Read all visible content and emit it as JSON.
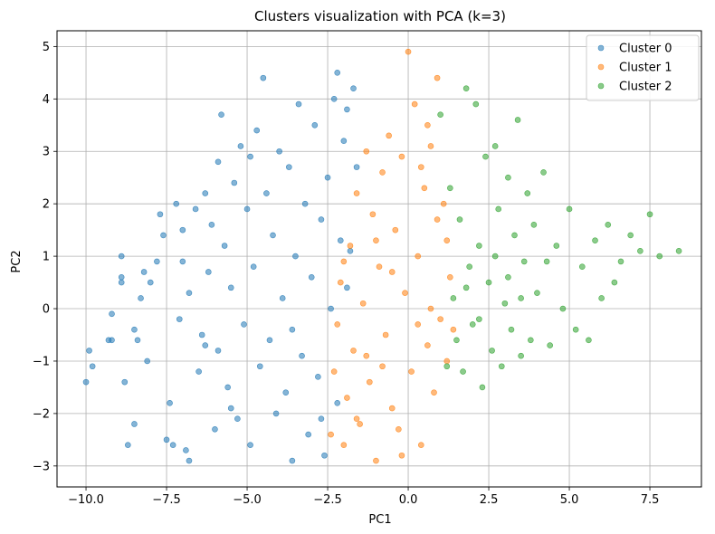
{
  "chart_data": {
    "type": "scatter",
    "title": "Clusters visualization with PCA (k=3)",
    "xlabel": "PC1",
    "ylabel": "PC2",
    "xlim": [
      -10.9,
      9.1
    ],
    "ylim": [
      -3.4,
      5.3
    ],
    "xticks": [
      -10.0,
      -7.5,
      -5.0,
      -2.5,
      0.0,
      2.5,
      5.0,
      7.5
    ],
    "xtick_labels": [
      "−10.0",
      "−7.5",
      "−5.0",
      "−2.5",
      "0.0",
      "2.5",
      "5.0",
      "7.5"
    ],
    "yticks": [
      -3,
      -2,
      -1,
      0,
      1,
      2,
      3,
      4,
      5
    ],
    "ytick_labels": [
      "−3",
      "−2",
      "−1",
      "0",
      "1",
      "2",
      "3",
      "4",
      "5"
    ],
    "grid": true,
    "legend_position": "top-right",
    "marker_alpha": 0.55,
    "series": [
      {
        "name": "Cluster 0",
        "color": "#1f77b4",
        "points": [
          [
            -10.0,
            -1.4
          ],
          [
            -9.8,
            -1.1
          ],
          [
            -9.9,
            -0.8
          ],
          [
            -9.2,
            -0.6
          ],
          [
            -9.3,
            -0.6
          ],
          [
            -9.2,
            -0.1
          ],
          [
            -8.9,
            1.0
          ],
          [
            -8.9,
            0.6
          ],
          [
            -8.9,
            0.5
          ],
          [
            -8.8,
            -1.4
          ],
          [
            -8.7,
            -2.6
          ],
          [
            -8.5,
            -2.2
          ],
          [
            -8.5,
            -0.4
          ],
          [
            -8.4,
            -0.6
          ],
          [
            -8.3,
            0.2
          ],
          [
            -8.2,
            0.7
          ],
          [
            -8.1,
            -1.0
          ],
          [
            -8.0,
            0.5
          ],
          [
            -7.8,
            0.9
          ],
          [
            -7.7,
            1.8
          ],
          [
            -7.6,
            1.4
          ],
          [
            -7.5,
            -2.5
          ],
          [
            -7.4,
            -1.8
          ],
          [
            -7.3,
            -2.6
          ],
          [
            -7.2,
            2.0
          ],
          [
            -7.1,
            -0.2
          ],
          [
            -7.0,
            1.5
          ],
          [
            -6.9,
            -2.7
          ],
          [
            -6.8,
            -2.9
          ],
          [
            -6.8,
            0.3
          ],
          [
            -6.6,
            1.9
          ],
          [
            -6.5,
            -1.2
          ],
          [
            -6.4,
            -0.5
          ],
          [
            -6.3,
            2.2
          ],
          [
            -6.2,
            0.7
          ],
          [
            -6.1,
            1.6
          ],
          [
            -6.0,
            -2.3
          ],
          [
            -5.9,
            -0.8
          ],
          [
            -5.9,
            2.8
          ],
          [
            -5.8,
            3.7
          ],
          [
            -5.7,
            1.2
          ],
          [
            -5.6,
            -1.5
          ],
          [
            -5.5,
            0.4
          ],
          [
            -5.4,
            2.4
          ],
          [
            -5.3,
            -2.1
          ],
          [
            -5.2,
            3.1
          ],
          [
            -5.1,
            -0.3
          ],
          [
            -5.0,
            1.9
          ],
          [
            -4.9,
            -2.6
          ],
          [
            -4.8,
            0.8
          ],
          [
            -4.7,
            3.4
          ],
          [
            -4.6,
            -1.1
          ],
          [
            -4.5,
            4.4
          ],
          [
            -4.4,
            2.2
          ],
          [
            -4.3,
            -0.6
          ],
          [
            -4.2,
            1.4
          ],
          [
            -4.1,
            -2.0
          ],
          [
            -4.0,
            3.0
          ],
          [
            -3.9,
            0.2
          ],
          [
            -3.8,
            -1.6
          ],
          [
            -3.7,
            2.7
          ],
          [
            -3.6,
            -2.9
          ],
          [
            -3.5,
            1.0
          ],
          [
            -3.4,
            3.9
          ],
          [
            -3.3,
            -0.9
          ],
          [
            -3.2,
            2.0
          ],
          [
            -3.1,
            -2.4
          ],
          [
            -3.0,
            0.6
          ],
          [
            -2.9,
            3.5
          ],
          [
            -2.8,
            -1.3
          ],
          [
            -2.7,
            1.7
          ],
          [
            -2.6,
            -2.8
          ],
          [
            -2.5,
            2.5
          ],
          [
            -2.4,
            0.0
          ],
          [
            -2.3,
            4.0
          ],
          [
            -2.2,
            -1.8
          ],
          [
            -2.1,
            1.3
          ],
          [
            -2.0,
            3.2
          ],
          [
            -1.9,
            0.4
          ],
          [
            -1.8,
            1.1
          ],
          [
            -1.7,
            4.2
          ],
          [
            -1.6,
            2.7
          ],
          [
            -2.2,
            4.5
          ],
          [
            -1.9,
            3.8
          ],
          [
            -5.5,
            -1.9
          ],
          [
            -6.3,
            -0.7
          ],
          [
            -4.9,
            2.9
          ],
          [
            -3.6,
            -0.4
          ],
          [
            -2.7,
            -2.1
          ],
          [
            -7.0,
            0.9
          ]
        ]
      },
      {
        "name": "Cluster 1",
        "color": "#ff7f0e",
        "points": [
          [
            -2.4,
            -2.4
          ],
          [
            -2.3,
            -1.2
          ],
          [
            -2.2,
            -0.3
          ],
          [
            -2.1,
            0.5
          ],
          [
            -2.0,
            -2.6
          ],
          [
            -1.9,
            -1.7
          ],
          [
            -1.8,
            1.2
          ],
          [
            -1.7,
            -0.8
          ],
          [
            -1.6,
            2.2
          ],
          [
            -1.5,
            -2.2
          ],
          [
            -1.4,
            0.1
          ],
          [
            -1.3,
            3.0
          ],
          [
            -1.2,
            -1.4
          ],
          [
            -1.1,
            1.8
          ],
          [
            -1.0,
            -2.9
          ],
          [
            -0.9,
            0.8
          ],
          [
            -0.8,
            2.6
          ],
          [
            -0.7,
            -0.5
          ],
          [
            -0.6,
            3.3
          ],
          [
            -0.5,
            -1.9
          ],
          [
            -0.4,
            1.5
          ],
          [
            -0.3,
            -2.3
          ],
          [
            -0.2,
            2.9
          ],
          [
            -0.1,
            0.3
          ],
          [
            0.0,
            4.9
          ],
          [
            0.1,
            -1.2
          ],
          [
            0.2,
            3.9
          ],
          [
            0.3,
            1.0
          ],
          [
            0.4,
            -2.6
          ],
          [
            0.5,
            2.3
          ],
          [
            0.6,
            -0.7
          ],
          [
            0.7,
            3.1
          ],
          [
            0.8,
            -1.6
          ],
          [
            0.9,
            1.7
          ],
          [
            1.0,
            -0.2
          ],
          [
            1.1,
            2.0
          ],
          [
            1.2,
            -1.0
          ],
          [
            1.3,
            0.6
          ],
          [
            1.4,
            -0.4
          ],
          [
            0.9,
            4.4
          ],
          [
            0.6,
            3.5
          ],
          [
            -1.3,
            -0.9
          ],
          [
            -2.0,
            0.9
          ],
          [
            -0.8,
            -1.1
          ],
          [
            0.3,
            -0.3
          ],
          [
            -0.5,
            0.7
          ],
          [
            1.2,
            1.3
          ],
          [
            0.4,
            2.7
          ],
          [
            -1.6,
            -2.1
          ],
          [
            -0.2,
            -2.8
          ],
          [
            0.7,
            0.0
          ],
          [
            -1.0,
            1.3
          ]
        ]
      },
      {
        "name": "Cluster 2",
        "color": "#2ca02c",
        "points": [
          [
            1.0,
            3.7
          ],
          [
            1.2,
            -1.1
          ],
          [
            1.3,
            2.3
          ],
          [
            1.4,
            0.2
          ],
          [
            1.5,
            -0.6
          ],
          [
            1.6,
            1.7
          ],
          [
            1.7,
            -1.2
          ],
          [
            1.8,
            4.2
          ],
          [
            1.9,
            0.8
          ],
          [
            2.0,
            -0.3
          ],
          [
            2.1,
            3.9
          ],
          [
            2.2,
            1.2
          ],
          [
            2.3,
            -1.5
          ],
          [
            2.4,
            2.9
          ],
          [
            2.5,
            0.5
          ],
          [
            2.6,
            -0.8
          ],
          [
            2.7,
            3.1
          ],
          [
            2.8,
            1.9
          ],
          [
            2.9,
            -1.1
          ],
          [
            3.0,
            0.1
          ],
          [
            3.1,
            2.5
          ],
          [
            3.2,
            -0.4
          ],
          [
            3.3,
            1.4
          ],
          [
            3.4,
            3.6
          ],
          [
            3.5,
            -0.9
          ],
          [
            3.6,
            0.9
          ],
          [
            3.7,
            2.2
          ],
          [
            3.8,
            -0.6
          ],
          [
            3.9,
            1.6
          ],
          [
            4.0,
            0.3
          ],
          [
            4.2,
            2.6
          ],
          [
            4.4,
            -0.7
          ],
          [
            4.6,
            1.2
          ],
          [
            4.8,
            0.0
          ],
          [
            5.0,
            1.9
          ],
          [
            5.2,
            -0.4
          ],
          [
            5.4,
            0.8
          ],
          [
            5.6,
            -0.6
          ],
          [
            5.8,
            1.3
          ],
          [
            6.0,
            0.2
          ],
          [
            6.2,
            1.6
          ],
          [
            6.4,
            0.5
          ],
          [
            6.6,
            0.9
          ],
          [
            6.9,
            1.4
          ],
          [
            7.2,
            1.1
          ],
          [
            7.5,
            1.8
          ],
          [
            7.8,
            1.0
          ],
          [
            8.4,
            1.1
          ],
          [
            2.2,
            -0.2
          ],
          [
            3.1,
            0.6
          ],
          [
            2.7,
            1.0
          ],
          [
            4.3,
            0.9
          ],
          [
            1.8,
            0.4
          ],
          [
            3.5,
            0.2
          ]
        ]
      }
    ]
  }
}
